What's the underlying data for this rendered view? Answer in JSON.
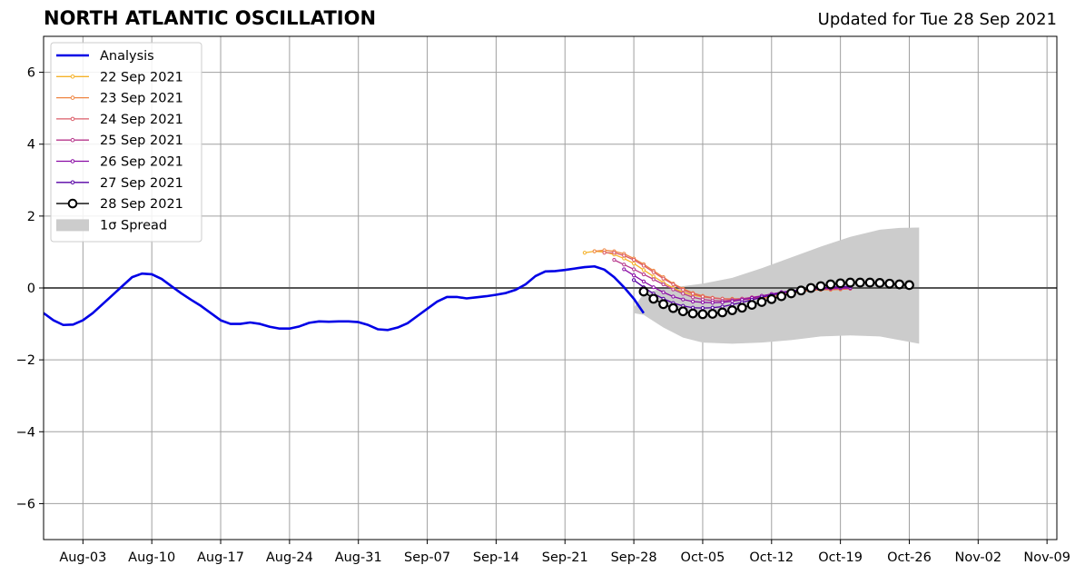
{
  "header": {
    "title": "NORTH ATLANTIC OSCILLATION",
    "updated": "Updated for Tue 28 Sep 2021"
  },
  "chart_data": {
    "type": "line",
    "title": "NORTH ATLANTIC OSCILLATION",
    "xlabel": "",
    "ylabel": "",
    "xlim": [
      "2021-07-30",
      "2021-11-10"
    ],
    "ylim": [
      -7,
      7
    ],
    "yticks": [
      -6,
      -4,
      -2,
      0,
      2,
      4,
      6
    ],
    "ytick_labels": [
      "−6",
      "−4",
      "−2",
      "0",
      "2",
      "4",
      "6"
    ],
    "xticks": [
      {
        "date": "2021-08-03",
        "label": "Aug-03"
      },
      {
        "date": "2021-08-10",
        "label": "Aug-10"
      },
      {
        "date": "2021-08-17",
        "label": "Aug-17"
      },
      {
        "date": "2021-08-24",
        "label": "Aug-24"
      },
      {
        "date": "2021-08-31",
        "label": "Aug-31"
      },
      {
        "date": "2021-09-07",
        "label": "Sep-07"
      },
      {
        "date": "2021-09-14",
        "label": "Sep-14"
      },
      {
        "date": "2021-09-21",
        "label": "Sep-21"
      },
      {
        "date": "2021-09-28",
        "label": "Sep-28"
      },
      {
        "date": "2021-10-05",
        "label": "Oct-05"
      },
      {
        "date": "2021-10-12",
        "label": "Oct-12"
      },
      {
        "date": "2021-10-19",
        "label": "Oct-19"
      },
      {
        "date": "2021-10-26",
        "label": "Oct-26"
      },
      {
        "date": "2021-11-02",
        "label": "Nov-02"
      },
      {
        "date": "2021-11-09",
        "label": "Nov-09"
      }
    ],
    "grid": true,
    "legend_position": "top-left",
    "legend": [
      {
        "label": "Analysis",
        "color": "#0000e6",
        "style": "line"
      },
      {
        "label": "22 Sep 2021",
        "color": "#f5b22a",
        "style": "marker-line"
      },
      {
        "label": "23 Sep 2021",
        "color": "#ef8542",
        "style": "marker-line"
      },
      {
        "label": "24 Sep 2021",
        "color": "#db5c68",
        "style": "marker-line"
      },
      {
        "label": "25 Sep 2021",
        "color": "#b7378c",
        "style": "marker-line"
      },
      {
        "label": "26 Sep 2021",
        "color": "#8a0ca5",
        "style": "marker-line"
      },
      {
        "label": "27 Sep 2021",
        "color": "#5601a4",
        "style": "marker-line"
      },
      {
        "label": "28 Sep 2021",
        "color": "#000000",
        "style": "circle-line"
      },
      {
        "label": "1σ Spread",
        "color": "#cccccc",
        "style": "patch"
      }
    ],
    "analysis": {
      "name": "Analysis",
      "color": "#0000e6",
      "start_date": "2021-07-30",
      "values": [
        -0.7,
        -0.9,
        -1.03,
        -1.02,
        -0.9,
        -0.7,
        -0.45,
        -0.2,
        0.05,
        0.3,
        0.4,
        0.38,
        0.25,
        0.05,
        -0.15,
        -0.33,
        -0.5,
        -0.7,
        -0.9,
        -1.0,
        -1.0,
        -0.96,
        -1.0,
        -1.08,
        -1.13,
        -1.13,
        -1.07,
        -0.97,
        -0.93,
        -0.94,
        -0.93,
        -0.93,
        -0.95,
        -1.03,
        -1.15,
        -1.17,
        -1.1,
        -0.98,
        -0.78,
        -0.58,
        -0.38,
        -0.25,
        -0.25,
        -0.29,
        -0.26,
        -0.23,
        -0.19,
        -0.14,
        -0.05,
        0.1,
        0.33,
        0.46,
        0.47,
        0.5,
        0.54,
        0.58,
        0.6,
        0.51,
        0.3,
        0.02,
        -0.3,
        -0.7
      ]
    },
    "forecasts": [
      {
        "name": "22 Sep 2021",
        "color": "#f5b22a",
        "start_date": "2021-09-23",
        "values": [
          0.98,
          1.02,
          1.0,
          0.93,
          0.82,
          0.68,
          0.5,
          0.32,
          0.15,
          0.0,
          -0.12,
          -0.2,
          -0.25,
          -0.28,
          -0.3,
          -0.3,
          -0.3,
          -0.3,
          -0.28,
          -0.25,
          -0.2,
          -0.15,
          -0.1,
          -0.06,
          -0.04,
          -0.04,
          -0.03,
          -0.02
        ]
      },
      {
        "name": "23 Sep 2021",
        "color": "#ef8542",
        "start_date": "2021-09-24",
        "values": [
          1.02,
          1.05,
          1.02,
          0.95,
          0.82,
          0.66,
          0.48,
          0.3,
          0.12,
          -0.02,
          -0.14,
          -0.22,
          -0.27,
          -0.3,
          -0.32,
          -0.32,
          -0.31,
          -0.28,
          -0.25,
          -0.2,
          -0.15,
          -0.1,
          -0.07,
          -0.05,
          -0.05,
          -0.04,
          -0.02
        ]
      },
      {
        "name": "24 Sep 2021",
        "color": "#db5c68",
        "start_date": "2021-09-25",
        "values": [
          0.98,
          0.98,
          0.9,
          0.78,
          0.62,
          0.44,
          0.26,
          0.1,
          -0.05,
          -0.16,
          -0.24,
          -0.28,
          -0.3,
          -0.31,
          -0.3,
          -0.28,
          -0.24,
          -0.2,
          -0.16,
          -0.12,
          -0.08,
          -0.05,
          -0.04,
          -0.03,
          -0.02,
          -0.02
        ]
      },
      {
        "name": "25 Sep 2021",
        "color": "#b7378c",
        "start_date": "2021-09-26",
        "values": [
          0.78,
          0.65,
          0.52,
          0.38,
          0.24,
          0.1,
          -0.04,
          -0.16,
          -0.26,
          -0.32,
          -0.35,
          -0.36,
          -0.34,
          -0.3,
          -0.26,
          -0.22,
          -0.17,
          -0.12,
          -0.08,
          -0.05,
          -0.03,
          -0.02,
          -0.02,
          -0.01,
          -0.01
        ]
      },
      {
        "name": "26 Sep 2021",
        "color": "#8a0ca5",
        "start_date": "2021-09-27",
        "values": [
          0.52,
          0.35,
          0.18,
          0.02,
          -0.12,
          -0.24,
          -0.32,
          -0.38,
          -0.4,
          -0.41,
          -0.4,
          -0.37,
          -0.33,
          -0.28,
          -0.22,
          -0.17,
          -0.12,
          -0.08,
          -0.05,
          -0.03,
          -0.02,
          -0.01,
          0.0,
          0.0
        ]
      },
      {
        "name": "27 Sep 2021",
        "color": "#5601a4",
        "start_date": "2021-09-28",
        "values": [
          0.22,
          0.02,
          -0.16,
          -0.3,
          -0.42,
          -0.5,
          -0.55,
          -0.56,
          -0.55,
          -0.52,
          -0.46,
          -0.4,
          -0.33,
          -0.26,
          -0.2,
          -0.14,
          -0.09,
          -0.05,
          -0.02,
          0.0,
          0.02,
          0.03,
          0.04
        ]
      }
    ],
    "latest": {
      "name": "28 Sep 2021",
      "color": "#000000",
      "start_date": "2021-09-29",
      "values": [
        -0.1,
        -0.3,
        -0.45,
        -0.56,
        -0.65,
        -0.71,
        -0.73,
        -0.72,
        -0.68,
        -0.62,
        -0.55,
        -0.47,
        -0.39,
        -0.31,
        -0.23,
        -0.15,
        -0.07,
        0.0,
        0.05,
        0.1,
        0.13,
        0.15,
        0.15,
        0.15,
        0.14,
        0.12,
        0.1,
        0.08
      ]
    },
    "spread": {
      "name": "1σ Spread",
      "color": "#cccccc",
      "dates": [
        "2021-09-28",
        "2021-09-29",
        "2021-10-01",
        "2021-10-03",
        "2021-10-05",
        "2021-10-08",
        "2021-10-11",
        "2021-10-14",
        "2021-10-17",
        "2021-10-20",
        "2021-10-23",
        "2021-10-25",
        "2021-10-27"
      ],
      "upper": [
        -0.55,
        -0.15,
        0.0,
        0.05,
        0.12,
        0.28,
        0.55,
        0.85,
        1.15,
        1.42,
        1.62,
        1.67,
        1.68
      ],
      "lower": [
        -0.7,
        -0.75,
        -1.1,
        -1.38,
        -1.52,
        -1.55,
        -1.52,
        -1.45,
        -1.35,
        -1.32,
        -1.35,
        -1.45,
        -1.55
      ]
    }
  }
}
